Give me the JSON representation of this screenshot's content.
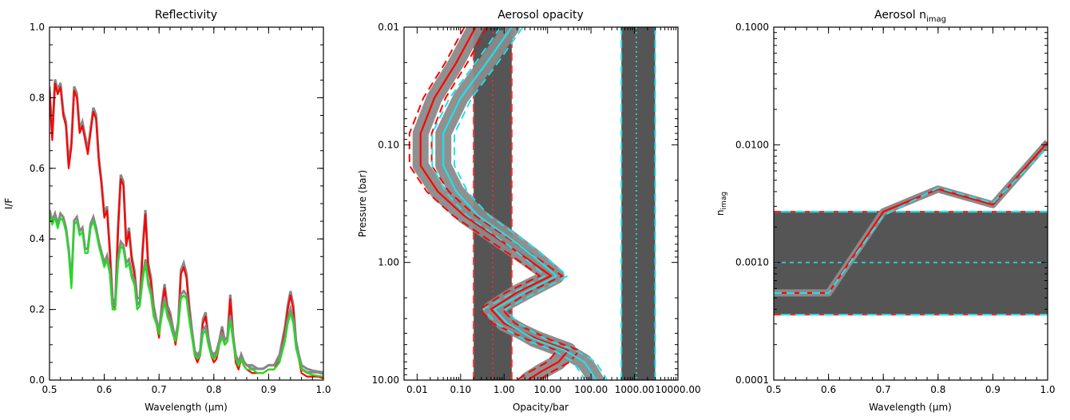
{
  "chart_data": [
    {
      "type": "line",
      "title": "Reflectivity",
      "xlabel": "Wavelength (µm)",
      "ylabel": "I/F",
      "xlim": [
        0.5,
        1.0
      ],
      "ylim": [
        0.0,
        1.0
      ],
      "xticks": [
        "0.5",
        "0.6",
        "0.7",
        "0.8",
        "0.9",
        "1.0"
      ],
      "yticks": [
        "0.0",
        "0.2",
        "0.4",
        "0.6",
        "0.8",
        "1.0"
      ],
      "series": [
        {
          "color": "#ff0000",
          "band_color": "#888888",
          "x": [
            0.5,
            0.505,
            0.51,
            0.515,
            0.52,
            0.525,
            0.53,
            0.535,
            0.54,
            0.545,
            0.55,
            0.555,
            0.56,
            0.565,
            0.57,
            0.575,
            0.58,
            0.585,
            0.59,
            0.595,
            0.6,
            0.605,
            0.61,
            0.615,
            0.62,
            0.625,
            0.63,
            0.635,
            0.64,
            0.645,
            0.65,
            0.655,
            0.66,
            0.665,
            0.67,
            0.675,
            0.68,
            0.685,
            0.69,
            0.695,
            0.7,
            0.705,
            0.71,
            0.715,
            0.72,
            0.725,
            0.73,
            0.735,
            0.74,
            0.745,
            0.75,
            0.755,
            0.76,
            0.765,
            0.77,
            0.775,
            0.78,
            0.785,
            0.79,
            0.795,
            0.8,
            0.805,
            0.81,
            0.815,
            0.82,
            0.825,
            0.83,
            0.835,
            0.84,
            0.845,
            0.85,
            0.855,
            0.86,
            0.87,
            0.88,
            0.89,
            0.9,
            0.91,
            0.92,
            0.93,
            0.935,
            0.94,
            0.945,
            0.95,
            0.96,
            0.97,
            0.98,
            0.99,
            1.0
          ],
          "y": [
            0.82,
            0.68,
            0.84,
            0.81,
            0.83,
            0.75,
            0.72,
            0.6,
            0.66,
            0.82,
            0.8,
            0.7,
            0.72,
            0.68,
            0.64,
            0.7,
            0.76,
            0.74,
            0.62,
            0.55,
            0.46,
            0.48,
            0.36,
            0.22,
            0.2,
            0.42,
            0.57,
            0.55,
            0.38,
            0.42,
            0.34,
            0.3,
            0.22,
            0.22,
            0.36,
            0.47,
            0.32,
            0.28,
            0.2,
            0.16,
            0.12,
            0.2,
            0.26,
            0.2,
            0.18,
            0.14,
            0.1,
            0.15,
            0.3,
            0.32,
            0.29,
            0.2,
            0.13,
            0.07,
            0.05,
            0.07,
            0.16,
            0.18,
            0.11,
            0.07,
            0.05,
            0.06,
            0.1,
            0.14,
            0.1,
            0.11,
            0.23,
            0.12,
            0.05,
            0.03,
            0.06,
            0.04,
            0.03,
            0.02,
            0.02,
            0.02,
            0.03,
            0.03,
            0.06,
            0.14,
            0.2,
            0.24,
            0.2,
            0.1,
            0.02,
            0.01,
            0.01,
            0.01,
            0.005
          ]
        },
        {
          "color": "#22dd22",
          "band_color": "#888888",
          "x": [
            0.5,
            0.505,
            0.51,
            0.515,
            0.52,
            0.525,
            0.53,
            0.535,
            0.54,
            0.545,
            0.55,
            0.555,
            0.56,
            0.565,
            0.57,
            0.575,
            0.58,
            0.585,
            0.59,
            0.595,
            0.6,
            0.605,
            0.61,
            0.615,
            0.62,
            0.625,
            0.63,
            0.635,
            0.64,
            0.645,
            0.65,
            0.655,
            0.66,
            0.665,
            0.67,
            0.675,
            0.68,
            0.685,
            0.69,
            0.695,
            0.7,
            0.705,
            0.71,
            0.715,
            0.72,
            0.725,
            0.73,
            0.735,
            0.74,
            0.745,
            0.75,
            0.755,
            0.76,
            0.765,
            0.77,
            0.775,
            0.78,
            0.785,
            0.79,
            0.795,
            0.8,
            0.805,
            0.81,
            0.815,
            0.82,
            0.825,
            0.83,
            0.835,
            0.84,
            0.845,
            0.85,
            0.855,
            0.86,
            0.87,
            0.88,
            0.89,
            0.9,
            0.91,
            0.92,
            0.93,
            0.935,
            0.94,
            0.945,
            0.95,
            0.96,
            0.97,
            0.98,
            0.99,
            1.0
          ],
          "y": [
            0.47,
            0.44,
            0.46,
            0.43,
            0.46,
            0.45,
            0.42,
            0.36,
            0.26,
            0.44,
            0.45,
            0.41,
            0.42,
            0.36,
            0.36,
            0.43,
            0.45,
            0.42,
            0.38,
            0.35,
            0.32,
            0.34,
            0.3,
            0.2,
            0.2,
            0.33,
            0.38,
            0.37,
            0.32,
            0.33,
            0.29,
            0.27,
            0.2,
            0.21,
            0.28,
            0.33,
            0.27,
            0.24,
            0.18,
            0.16,
            0.13,
            0.18,
            0.22,
            0.18,
            0.16,
            0.13,
            0.11,
            0.15,
            0.23,
            0.24,
            0.23,
            0.17,
            0.12,
            0.07,
            0.06,
            0.07,
            0.13,
            0.14,
            0.1,
            0.07,
            0.06,
            0.07,
            0.1,
            0.12,
            0.1,
            0.11,
            0.17,
            0.11,
            0.06,
            0.04,
            0.06,
            0.04,
            0.03,
            0.03,
            0.02,
            0.02,
            0.03,
            0.03,
            0.05,
            0.11,
            0.16,
            0.19,
            0.16,
            0.09,
            0.03,
            0.02,
            0.015,
            0.012,
            0.01
          ]
        }
      ]
    },
    {
      "type": "line",
      "title": "Aerosol opacity",
      "xlabel": "Opacity/bar",
      "ylabel": "Pressure (bar)",
      "xscale": "log",
      "yscale": "log",
      "xlim": [
        0.005,
        10000
      ],
      "ylim": [
        10.0,
        0.01
      ],
      "xticks": [
        {
          "v": 0.01,
          "t": "0.01"
        },
        {
          "v": 0.1,
          "t": "0.10"
        },
        {
          "v": 1,
          "t": "1.00"
        },
        {
          "v": 10,
          "t": "10.00"
        },
        {
          "v": 100,
          "t": "100.00"
        },
        {
          "v": 1000,
          "t": "1000.00"
        },
        {
          "v": 10000,
          "t": "10000.00"
        }
      ],
      "yticks": [
        {
          "v": 0.01,
          "t": "0.01"
        },
        {
          "v": 0.1,
          "t": "0.10"
        },
        {
          "v": 1,
          "t": "1.00"
        },
        {
          "v": 10,
          "t": "10.00"
        }
      ],
      "vertical_bands": [
        {
          "lo": 0.2,
          "hi": 1.5,
          "center": 0.55,
          "fill": "#555555",
          "edge": "#ff2a2a",
          "center_color": "#ff2a2a"
        },
        {
          "lo": 500,
          "hi": 3000,
          "center": 1100,
          "fill": "#555555",
          "edge": "#22e0e8",
          "center_color": "#22e0e8"
        }
      ],
      "profiles": [
        {
          "color": "#ff0000",
          "band_color": "#8a8a8a",
          "p": [
            0.01,
            0.02,
            0.04,
            0.08,
            0.15,
            0.25,
            0.4,
            0.6,
            0.9,
            1.3,
            1.8,
            2.5,
            3.3,
            4.5,
            5.6,
            7.0,
            8.5,
            10.0
          ],
          "x": [
            0.22,
            0.08,
            0.025,
            0.012,
            0.012,
            0.03,
            0.12,
            0.6,
            3.0,
            12.0,
            2.0,
            0.5,
            1.0,
            6.0,
            30.0,
            18.0,
            7.0,
            3.5
          ]
        },
        {
          "color": "#22e0e8",
          "band_color": "#8a8a8a",
          "p": [
            0.01,
            0.02,
            0.04,
            0.08,
            0.15,
            0.25,
            0.4,
            0.6,
            0.9,
            1.3,
            1.8,
            2.5,
            3.3,
            4.5,
            5.6,
            7.0,
            8.5,
            10.0
          ],
          "x": [
            1.5,
            0.4,
            0.1,
            0.04,
            0.04,
            0.08,
            0.25,
            1.2,
            5.0,
            16.0,
            3.0,
            0.6,
            1.2,
            5.0,
            25.0,
            70.0,
            100.0,
            130.0
          ]
        }
      ]
    },
    {
      "type": "line",
      "title": "Aerosol n",
      "title_sub": "imag",
      "xlabel": "Wavelength (µm)",
      "ylabel": "n",
      "ylabel_sub": "imag",
      "yscale": "log",
      "xlim": [
        0.5,
        1.0
      ],
      "ylim": [
        0.0001,
        0.1
      ],
      "xticks": [
        "0.5",
        "0.6",
        "0.7",
        "0.8",
        "0.9",
        "1.0"
      ],
      "yticks": [
        {
          "v": 0.0001,
          "t": "0.0001"
        },
        {
          "v": 0.001,
          "t": "0.0010"
        },
        {
          "v": 0.01,
          "t": "0.0100"
        },
        {
          "v": 0.1,
          "t": "0.1000"
        }
      ],
      "horizontal_band": {
        "lo": 0.00036,
        "hi": 0.0027,
        "center": 0.001,
        "fill": "#555555",
        "edge_red": "#ff2a2a",
        "edge_cyan": "#22e0e8"
      },
      "series": [
        {
          "color": "#ff0000",
          "x": [
            0.5,
            0.6,
            0.7,
            0.8,
            0.9,
            1.0
          ],
          "y": [
            0.00055,
            0.00055,
            0.0027,
            0.0042,
            0.0031,
            0.0105
          ]
        },
        {
          "color": "#22e0e8",
          "x": [
            0.5,
            0.6,
            0.7,
            0.8,
            0.9,
            1.0
          ],
          "y": [
            0.00055,
            0.00055,
            0.0025,
            0.0043,
            0.0032,
            0.0095
          ]
        }
      ]
    }
  ]
}
